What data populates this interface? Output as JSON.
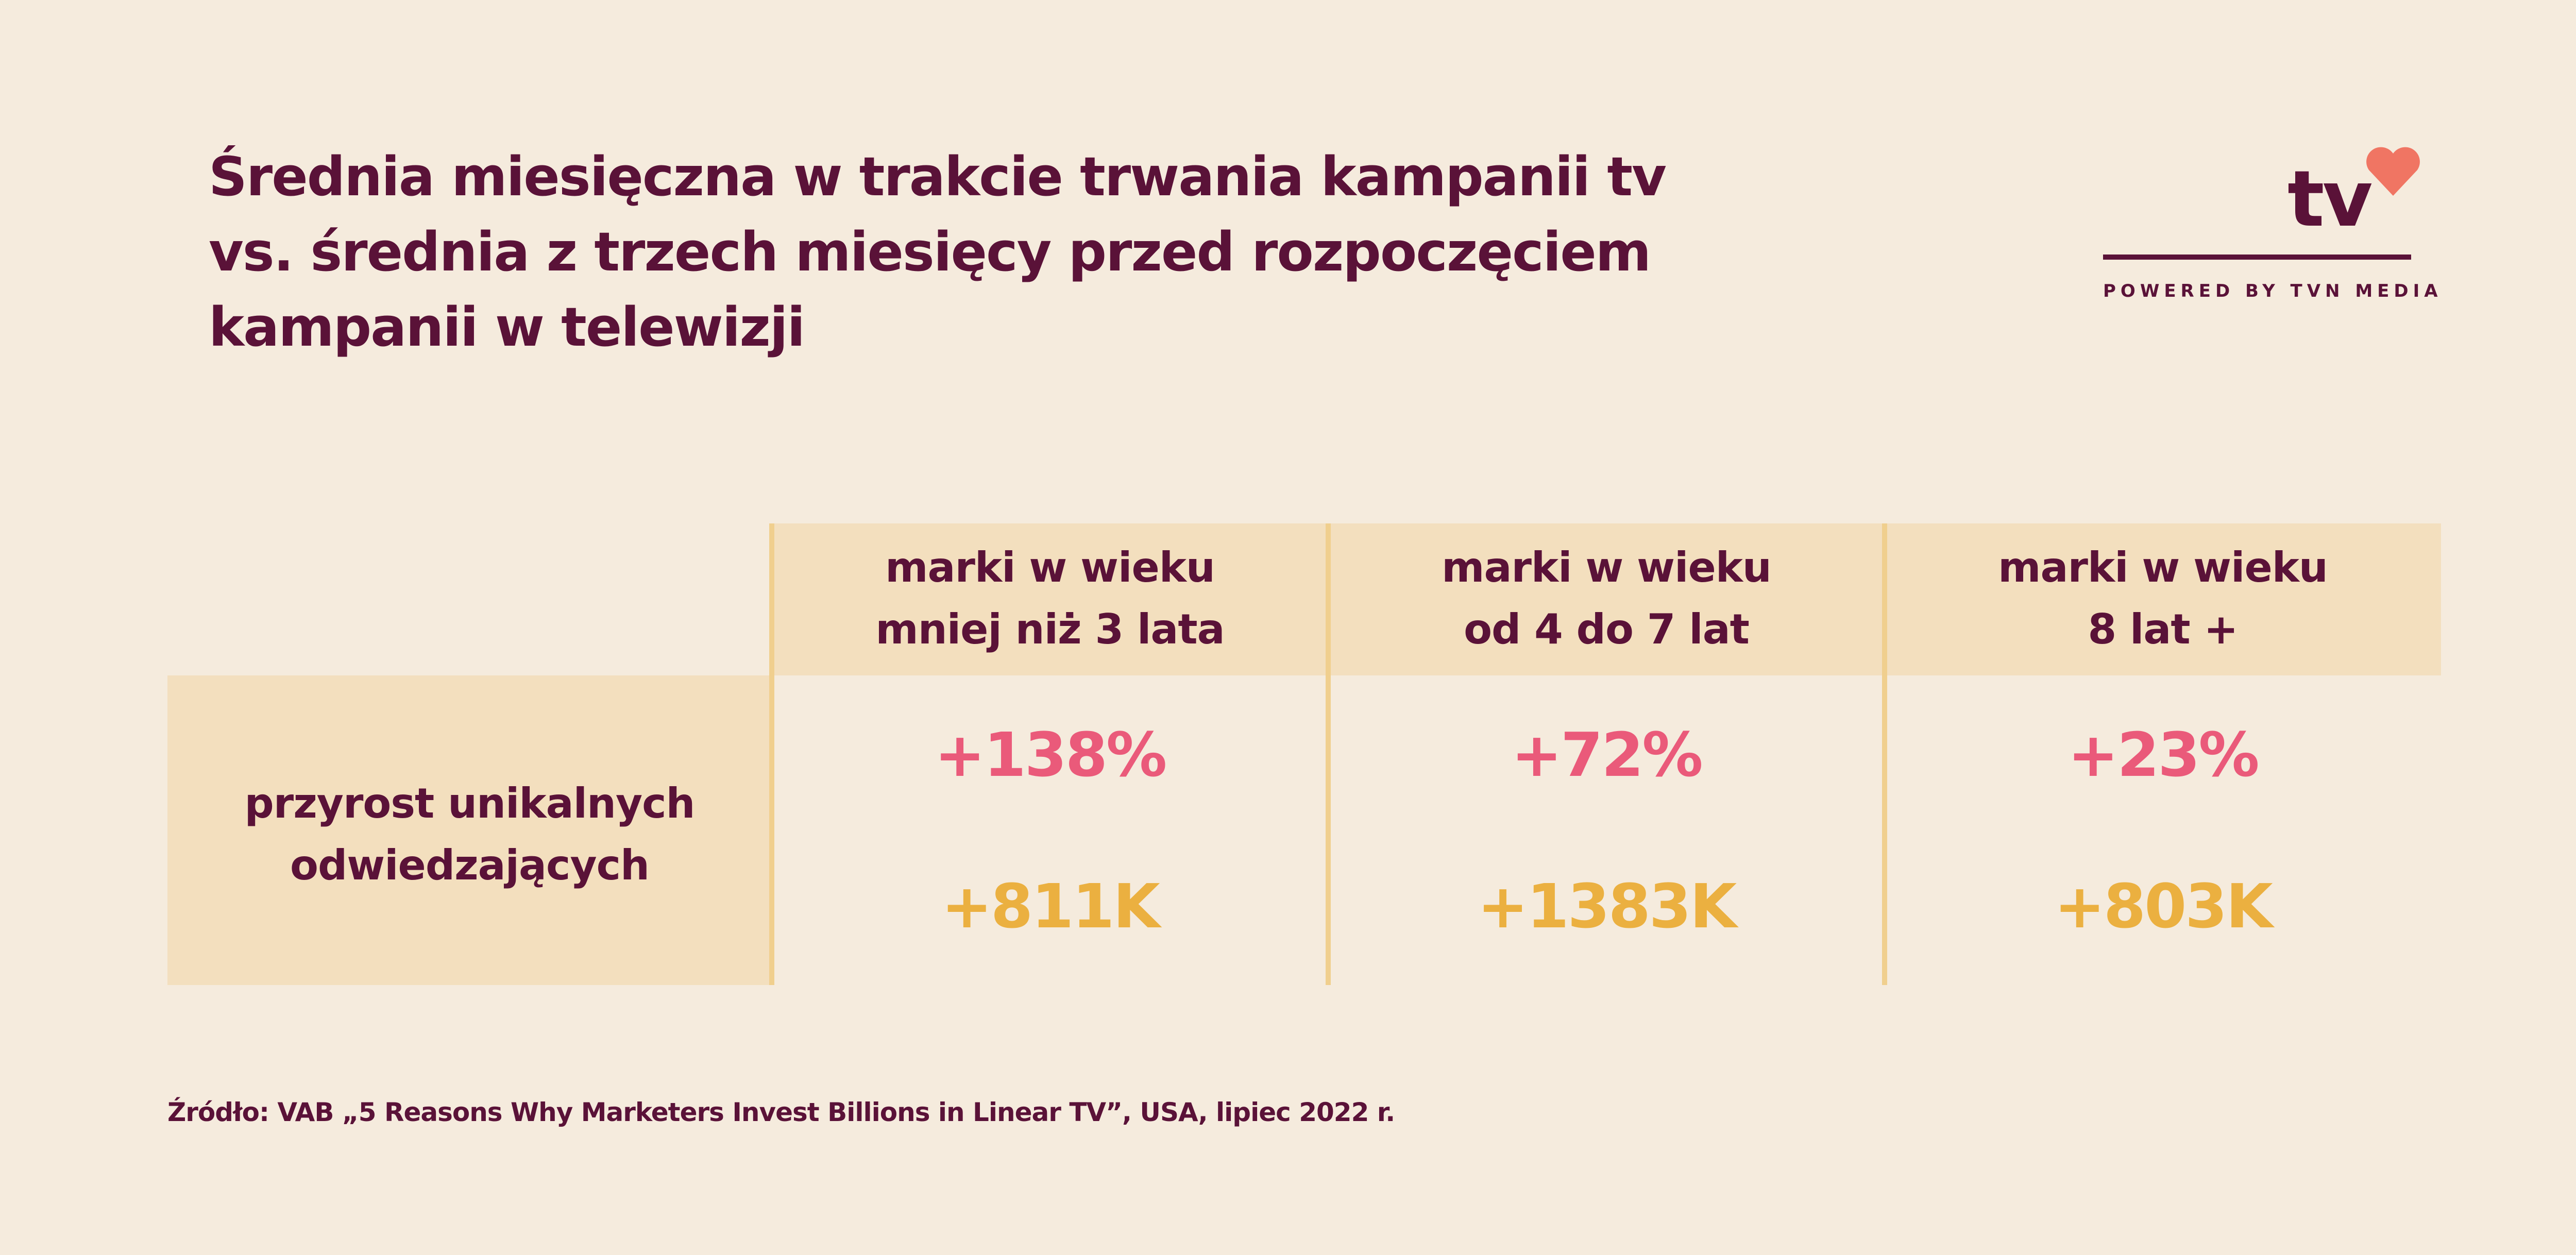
{
  "header": {
    "title_lines": [
      "Średnia miesięczna w trakcie trwania kampanii tv",
      "vs. średnia z trzech miesięcy przed rozpoczęciem",
      "kampanii w telewizji"
    ]
  },
  "logo": {
    "mark": "tv",
    "tagline": "POWERED BY TVN MEDIA"
  },
  "table": {
    "columns": [
      [
        "marki w wieku",
        "mniej niż 3 lata"
      ],
      [
        "marki w wieku",
        "od 4 do 7 lat"
      ],
      [
        "marki w wieku",
        "8 lat +"
      ]
    ],
    "row_header": [
      "przyrost unikalnych",
      "odwiedzających"
    ],
    "percent_row": [
      "+138%",
      "+72%",
      "+23%"
    ],
    "visitors_row": [
      "+811K",
      "+1383K",
      "+803K"
    ]
  },
  "source": "Źródło: VAB „5 Reasons Why Marketers Invest Billions in Linear TV”, USA, lipiec 2022 r."
}
